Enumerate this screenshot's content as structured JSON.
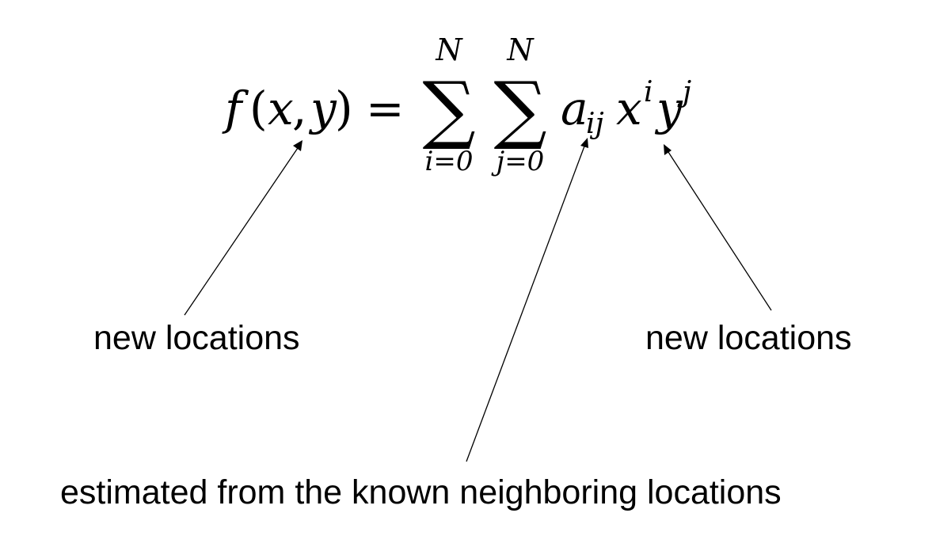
{
  "equation": {
    "lhs_f": "f",
    "lhs_open": "(",
    "lhs_x": "x",
    "lhs_comma": ",",
    "lhs_y": "y",
    "lhs_close": ")",
    "equals": "=",
    "sum_symbol": "∑",
    "sum1_upper": "N",
    "sum1_lower": "i=0",
    "sum2_upper": "N",
    "sum2_lower": "j=0",
    "coef_base": "a",
    "coef_sub": "ij",
    "x_base": "x",
    "x_sup": "i",
    "y_base": "y",
    "y_sup": "j"
  },
  "annotations": {
    "left_label": "new locations",
    "right_label": "new locations",
    "bottom_label": "estimated from the known neighboring locations"
  }
}
